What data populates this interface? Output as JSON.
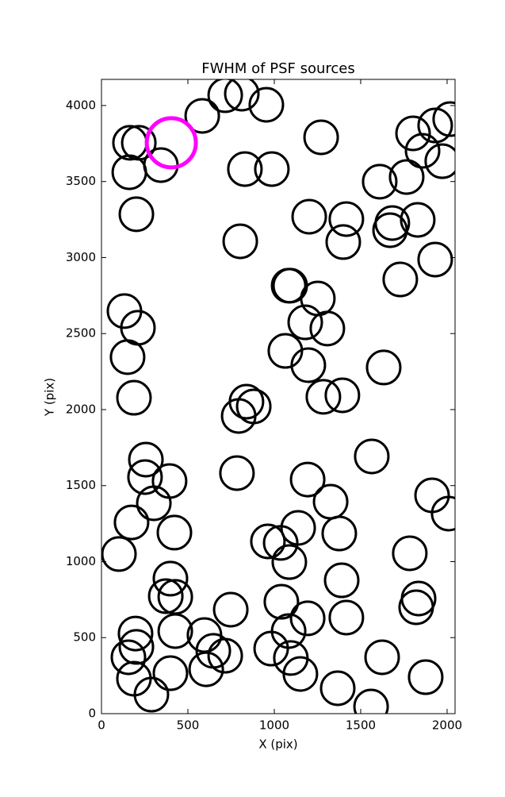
{
  "chart_data": {
    "type": "scatter",
    "title": "FWHM of PSF sources",
    "xlabel": "X (pix)",
    "ylabel": "Y (pix)",
    "xlim": [
      0,
      2046
    ],
    "ylim": [
      0,
      4172
    ],
    "xticks": [
      0,
      500,
      1000,
      1500,
      2000
    ],
    "yticks": [
      0,
      500,
      1000,
      1500,
      2000,
      2500,
      3000,
      3500,
      4000
    ],
    "grid": false,
    "series": [
      {
        "color": "#000000",
        "x": [
          583,
          716,
          812,
          954,
          1271,
          165,
          216,
          161,
          344,
          830,
          986,
          202,
          1202,
          1417,
          1399,
          803,
          1610,
          1766,
          1803,
          1858,
          1931,
          1972,
          2018,
          1683,
          1670,
          1830,
          1931,
          1729,
          1083,
          1092,
          1252,
          1179,
          1307,
          1064,
          1197,
          1284,
          1394,
          1633,
          133,
          211,
          151,
          188,
          839,
          881,
          794,
          257,
          252,
          394,
          303,
          174,
          422,
          784,
          1564,
          1193,
          1326,
          1138,
          963,
          1037,
          1087,
          1376,
          1913,
          2009,
          101,
          1784,
          399,
          372,
          427,
          748,
          1041,
          1390,
          1835,
          1821,
          1417,
          1193,
          1083,
          427,
          197,
          202,
          156,
          596,
          647,
          716,
          982,
          1096,
          1151,
          1624,
          188,
          399,
          606,
          289,
          1367,
          1560,
          1876
        ],
        "y": [
          3932,
          4068,
          4078,
          4005,
          3791,
          3755,
          3755,
          3561,
          3608,
          3582,
          3582,
          3285,
          3269,
          3253,
          3102,
          3107,
          3499,
          3530,
          3817,
          3702,
          3869,
          3634,
          3911,
          3227,
          3180,
          3248,
          2987,
          2856,
          2815,
          2815,
          2731,
          2574,
          2533,
          2386,
          2292,
          2084,
          2094,
          2277,
          2648,
          2538,
          2345,
          2078,
          2052,
          2021,
          1958,
          1671,
          1556,
          1530,
          1384,
          1258,
          1191,
          1582,
          1692,
          1540,
          1394,
          1222,
          1133,
          1123,
          997,
          1185,
          1436,
          1316,
          1050,
          1055,
          888,
          773,
          768,
          684,
          736,
          877,
          757,
          700,
          632,
          627,
          543,
          543,
          527,
          439,
          371,
          517,
          413,
          381,
          428,
          366,
          261,
          371,
          230,
          266,
          292,
          125,
          167,
          47,
          240
        ]
      },
      {
        "color": "#ff00ff",
        "x": [
          404
        ],
        "y": [
          3755
        ]
      }
    ]
  }
}
